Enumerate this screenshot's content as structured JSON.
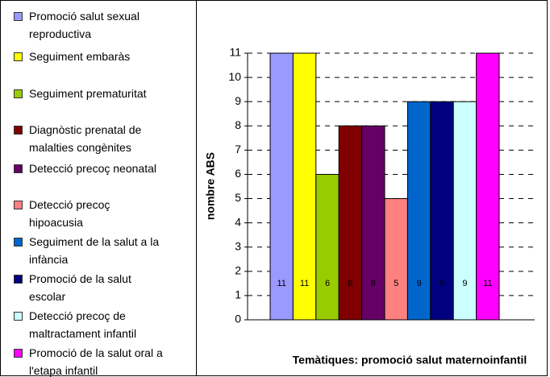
{
  "chart_data": {
    "type": "bar",
    "categories": [
      "Promoció salut sexual reproductiva",
      "Seguiment embaràs",
      "Seguiment prematuritat",
      "Diagnòstic prenatal de malalties congènites",
      "Detecció precoç neonatal",
      "Detecció precoç hipoacusia",
      "Seguiment de la salut a la infància",
      "Promoció de la salut escolar",
      "Detecció precoç de maltractament infantil",
      "Promoció de la salut oral  a l'etapa infantil"
    ],
    "values": [
      11,
      11,
      6,
      8,
      8,
      5,
      9,
      9,
      9,
      11
    ],
    "colors": [
      "#9999ff",
      "#ffff00",
      "#99cc00",
      "#800000",
      "#660066",
      "#ff8080",
      "#0066cc",
      "#000080",
      "#ccffff",
      "#ff00ff"
    ],
    "ylabel": "nombre ABS",
    "xlabel": "Temàtiques: promoció salut maternoinfantil",
    "ylim": [
      0,
      11
    ],
    "yticks": [
      0,
      1,
      2,
      3,
      4,
      5,
      6,
      7,
      8,
      9,
      10,
      11
    ],
    "grid": true,
    "legend": "left"
  }
}
